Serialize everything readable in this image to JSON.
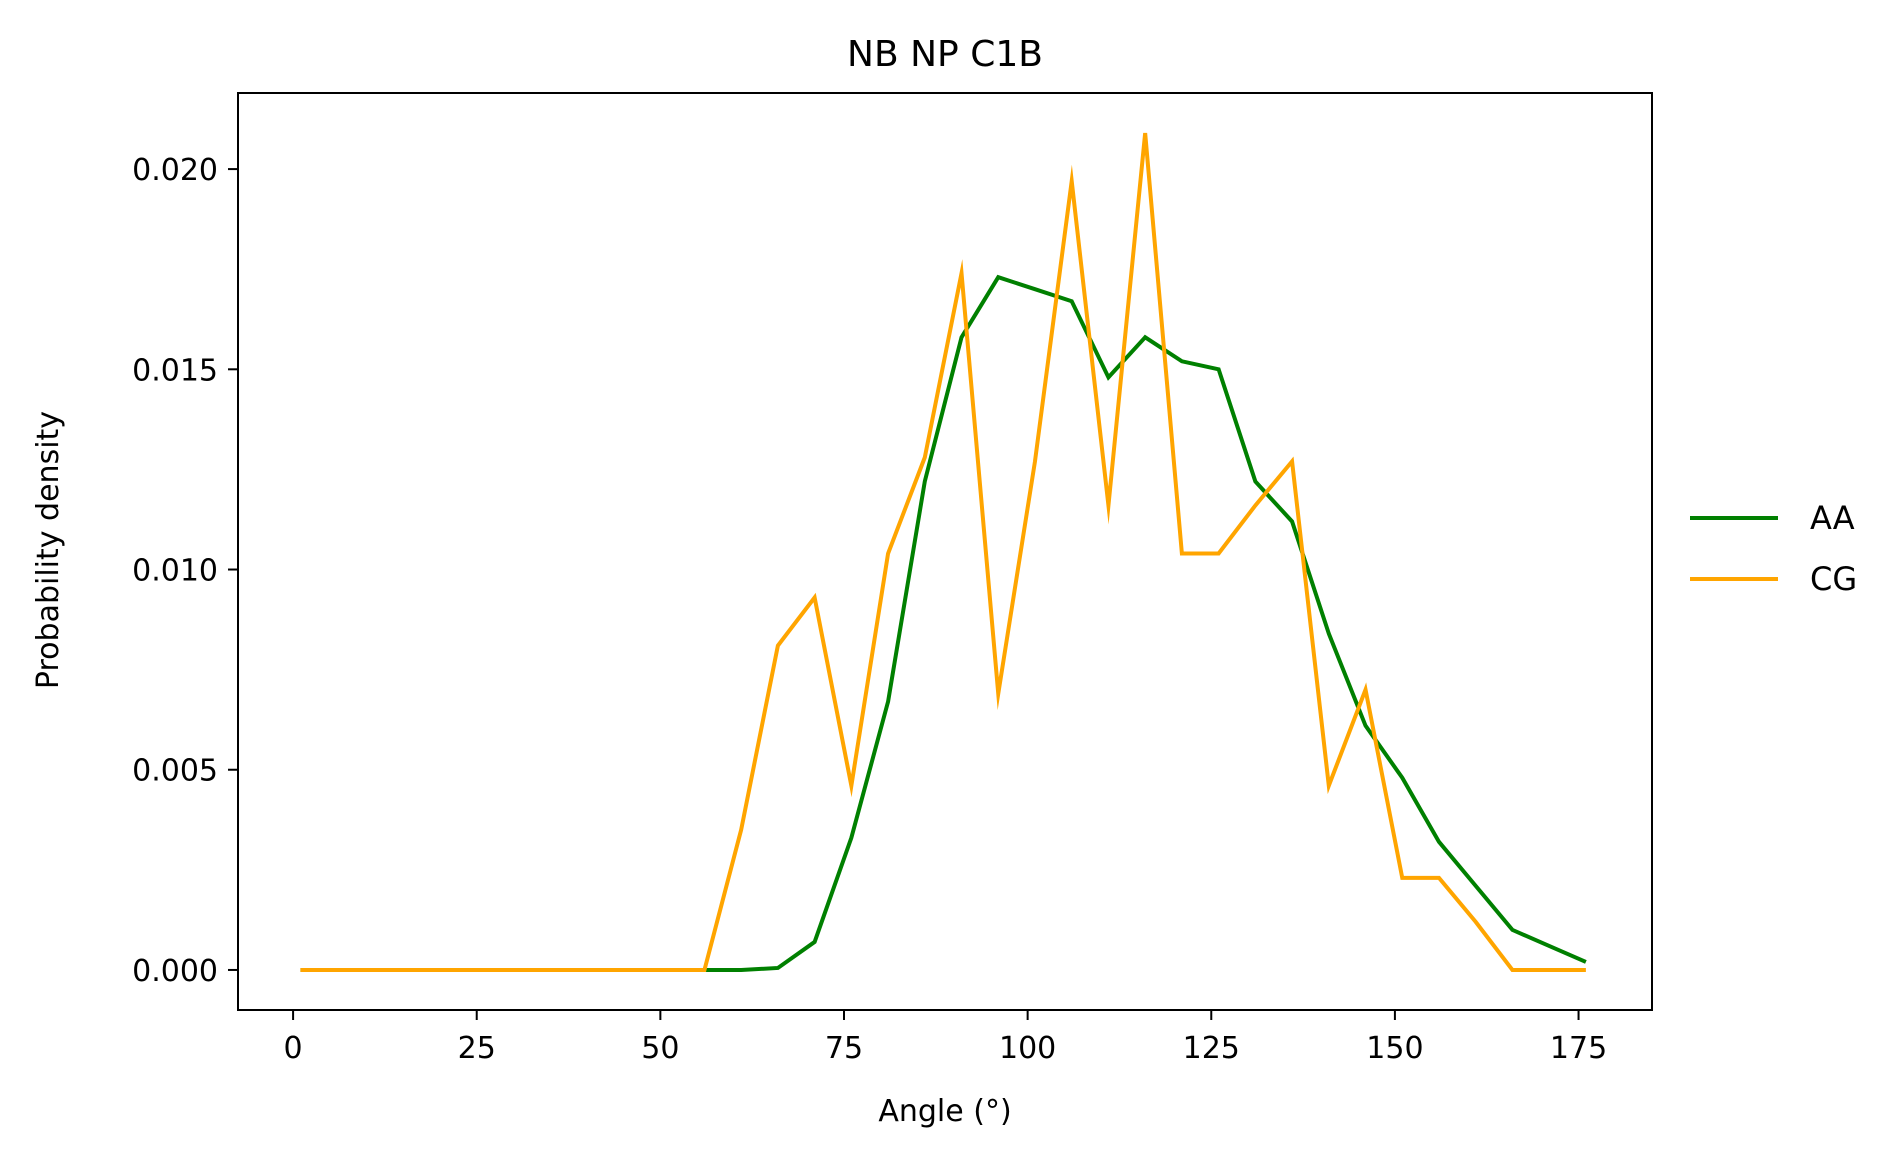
{
  "chart_data": {
    "type": "line",
    "title": "NB NP C1B",
    "xlabel": "Angle (°)",
    "ylabel": "Probability density",
    "xlim": [
      -7.5,
      185
    ],
    "ylim": [
      -0.001,
      0.0219
    ],
    "xticks": [
      0,
      25,
      50,
      75,
      100,
      125,
      150,
      175
    ],
    "xtick_labels": [
      "0",
      "25",
      "50",
      "75",
      "100",
      "125",
      "150",
      "175"
    ],
    "yticks": [
      0.0,
      0.005,
      0.01,
      0.015,
      0.02
    ],
    "ytick_labels": [
      "0.000",
      "0.005",
      "0.010",
      "0.015",
      "0.020"
    ],
    "grid": false,
    "legend_position": "right-outside",
    "x": [
      1,
      6,
      11,
      16,
      21,
      26,
      31,
      36,
      41,
      46,
      51,
      56,
      61,
      66,
      71,
      76,
      81,
      86,
      91,
      96,
      101,
      106,
      111,
      116,
      121,
      126,
      131,
      136,
      141,
      146,
      151,
      156,
      161,
      166,
      171,
      176
    ],
    "series": [
      {
        "name": "AA",
        "color": "#008000",
        "values": [
          0,
          0,
          0,
          0,
          0,
          0,
          0,
          0,
          0,
          0,
          0,
          0,
          0.0,
          5e-05,
          0.0007,
          0.0033,
          0.0067,
          0.0122,
          0.0158,
          0.0173,
          0.017,
          0.0167,
          0.0148,
          0.0158,
          0.0152,
          0.015,
          0.0122,
          0.0112,
          0.0084,
          0.0061,
          0.0048,
          0.0032,
          0.0021,
          0.001,
          0.0006,
          0.0002
        ]
      },
      {
        "name": "CG",
        "color": "#ffa500",
        "values": [
          0,
          0,
          0,
          0,
          0,
          0,
          0,
          0,
          0,
          0,
          0,
          0,
          0.0035,
          0.0081,
          0.0093,
          0.0046,
          0.0104,
          0.0128,
          0.0174,
          0.0069,
          0.0127,
          0.0197,
          0.0116,
          0.0209,
          0.0104,
          0.0104,
          0.0116,
          0.0127,
          0.0046,
          0.007,
          0.0023,
          0.0023,
          0.0012,
          0.0,
          0.0,
          0.0
        ]
      }
    ]
  }
}
